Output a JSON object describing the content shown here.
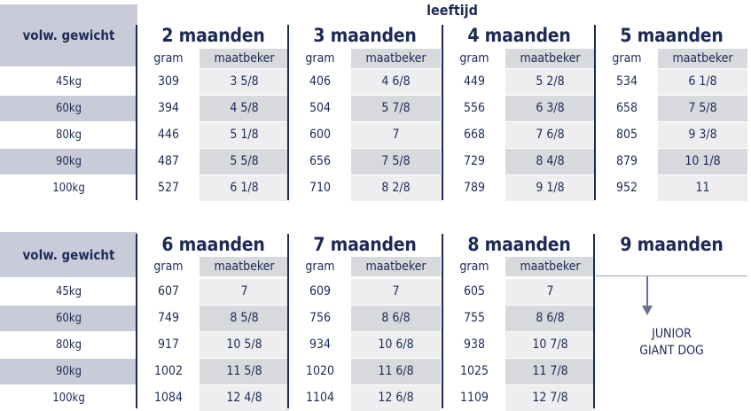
{
  "top_label": "leeftijd",
  "weight_header": "volw. gewicht",
  "col_gram": "gram",
  "col_cup": "maatbeker",
  "weights": [
    "45kg",
    "60kg",
    "80kg",
    "90kg",
    "100kg"
  ],
  "table1": {
    "months": [
      "2 maanden",
      "3 maanden",
      "4 maanden",
      "5 maanden"
    ],
    "rows": [
      [
        [
          "309",
          "3 5/8"
        ],
        [
          "406",
          "4 6/8"
        ],
        [
          "449",
          "5 2/8"
        ],
        [
          "534",
          "6 1/8"
        ]
      ],
      [
        [
          "394",
          "4 5/8"
        ],
        [
          "504",
          "5 7/8"
        ],
        [
          "556",
          "6 3/8"
        ],
        [
          "658",
          "7 5/8"
        ]
      ],
      [
        [
          "446",
          "5 1/8"
        ],
        [
          "600",
          "7"
        ],
        [
          "668",
          "7 6/8"
        ],
        [
          "805",
          "9 3/8"
        ]
      ],
      [
        [
          "487",
          "5 5/8"
        ],
        [
          "656",
          "7 5/8"
        ],
        [
          "729",
          "8 4/8"
        ],
        [
          "879",
          "10 1/8"
        ]
      ],
      [
        [
          "527",
          "6 1/8"
        ],
        [
          "710",
          "8 2/8"
        ],
        [
          "789",
          "9 1/8"
        ],
        [
          "952",
          "11"
        ]
      ]
    ]
  },
  "table2": {
    "months": [
      "6 maanden",
      "7 maanden",
      "8 maanden"
    ],
    "extra_month": "9 maanden",
    "extra_text_line1": "JUNIOR",
    "extra_text_line2": "GIANT DOG",
    "rows": [
      [
        [
          "607",
          "7"
        ],
        [
          "609",
          "7"
        ],
        [
          "605",
          "7"
        ]
      ],
      [
        [
          "749",
          "8 5/8"
        ],
        [
          "756",
          "8 6/8"
        ],
        [
          "755",
          "8 6/8"
        ]
      ],
      [
        [
          "917",
          "10 5/8"
        ],
        [
          "934",
          "10 6/8"
        ],
        [
          "938",
          "10 7/8"
        ]
      ],
      [
        [
          "1002",
          "11 5/8"
        ],
        [
          "1020",
          "11 6/8"
        ],
        [
          "1025",
          "11 7/8"
        ]
      ],
      [
        [
          "1084",
          "12 4/8"
        ],
        [
          "1104",
          "12 6/8"
        ],
        [
          "1109",
          "12 7/8"
        ]
      ]
    ]
  }
}
